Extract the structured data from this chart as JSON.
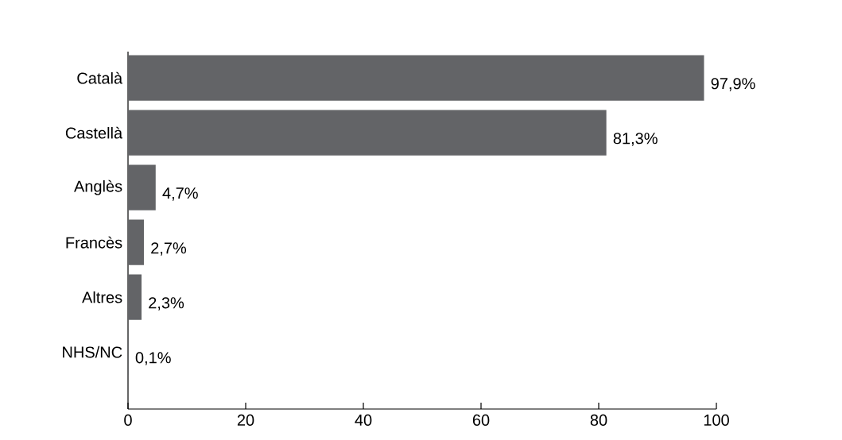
{
  "chart_data": {
    "type": "bar",
    "orientation": "horizontal",
    "categories": [
      "Català",
      "Castellà",
      "Anglès",
      "Francès",
      "Altres",
      "NHS/NC"
    ],
    "values": [
      97.9,
      81.3,
      4.7,
      2.7,
      2.3,
      0.1
    ],
    "value_labels": [
      "97,9%",
      "81,3%",
      "4,7%",
      "2,7%",
      "2,3%",
      "0,1%"
    ],
    "color": "#636467",
    "xlim": [
      0,
      100
    ],
    "xticks": [
      0,
      20,
      40,
      60,
      80,
      100
    ]
  }
}
